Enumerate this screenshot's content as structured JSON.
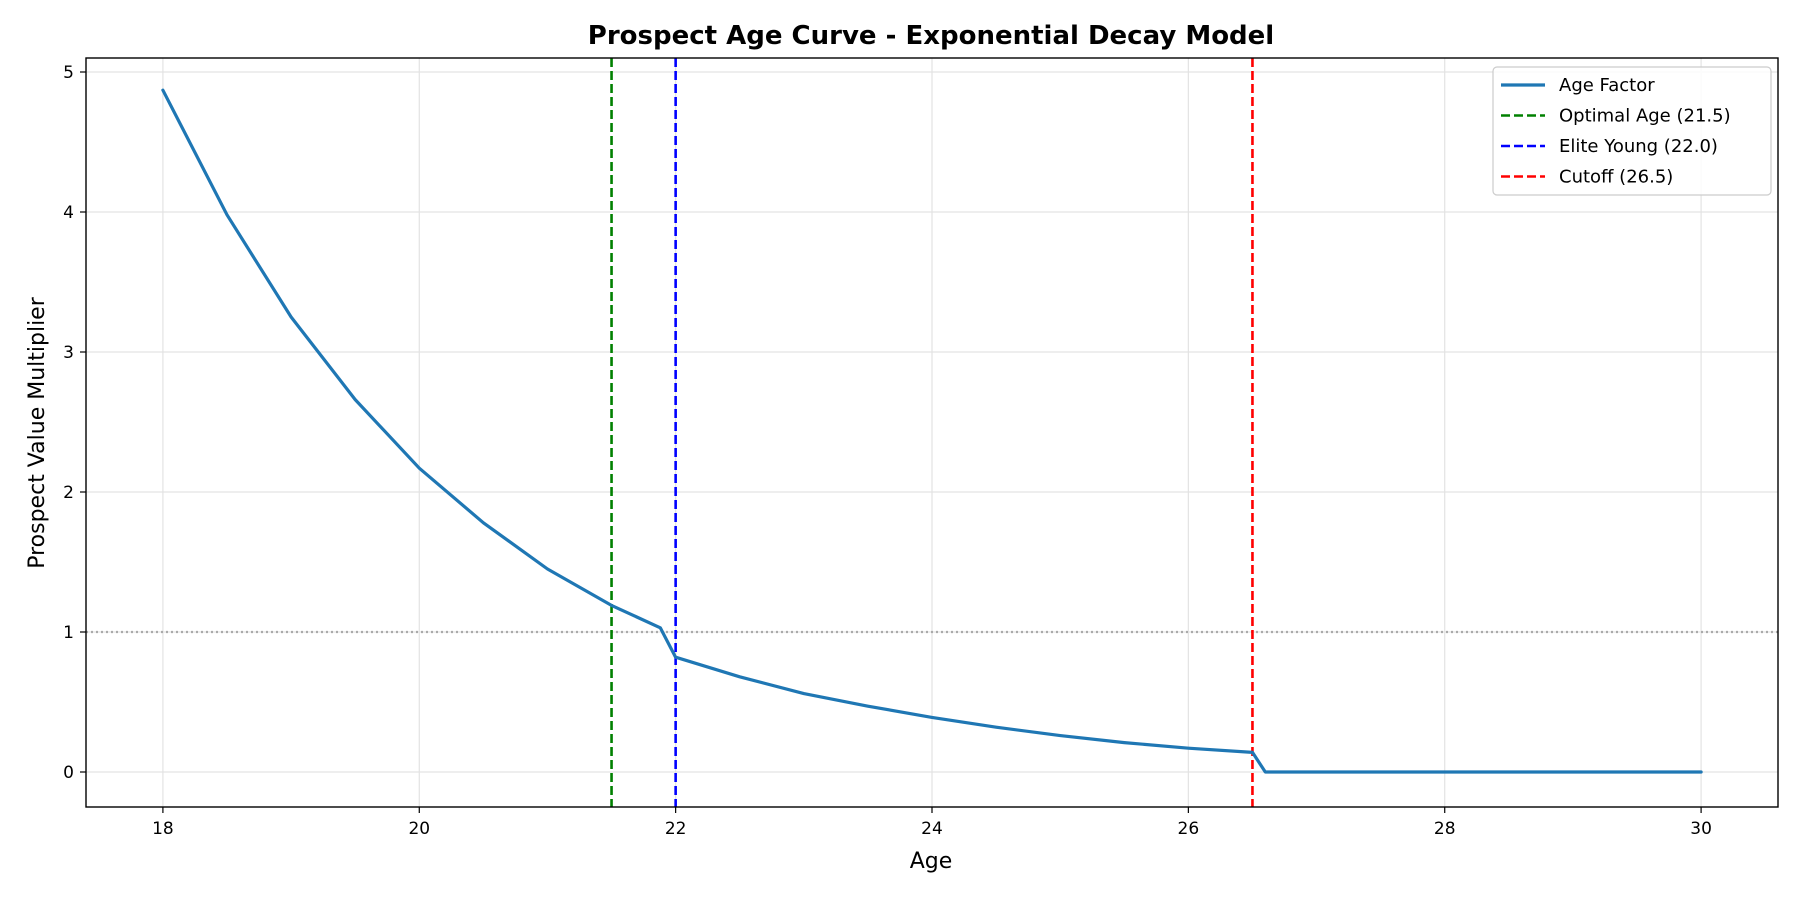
{
  "chart_data": {
    "type": "line",
    "title": "Prospect Age Curve - Exponential Decay Model",
    "xlabel": "Age",
    "ylabel": "Prospect Value Multiplier",
    "xlim": [
      17.4,
      30.6
    ],
    "ylim": [
      -0.25,
      5.1
    ],
    "xticks": [
      18,
      20,
      22,
      24,
      26,
      28,
      30
    ],
    "yticks": [
      0,
      1,
      2,
      3,
      4,
      5
    ],
    "grid": true,
    "legend_position": "top-right",
    "series": [
      {
        "name": "Age Factor",
        "color": "#1f77b4",
        "style": "solid",
        "x": [
          18.0,
          18.5,
          19.0,
          19.5,
          20.0,
          20.5,
          21.0,
          21.5,
          21.88,
          22.0,
          22.5,
          23.0,
          23.5,
          24.0,
          24.5,
          25.0,
          25.5,
          26.0,
          26.5,
          26.6,
          27.0,
          28.0,
          29.0,
          30.0
        ],
        "y": [
          4.87,
          3.98,
          3.25,
          2.66,
          2.17,
          1.78,
          1.45,
          1.19,
          1.03,
          0.82,
          0.68,
          0.56,
          0.47,
          0.39,
          0.32,
          0.26,
          0.21,
          0.17,
          0.14,
          0.0,
          0.0,
          0.0,
          0.0,
          0.0
        ]
      }
    ],
    "vlines": [
      {
        "name": "Optimal Age (21.5)",
        "x": 21.5,
        "color": "#008000",
        "style": "dashed"
      },
      {
        "name": "Elite Young (22.0)",
        "x": 22.0,
        "color": "#0000ff",
        "style": "dashed"
      },
      {
        "name": "Cutoff (26.5)",
        "x": 26.5,
        "color": "#ff0000",
        "style": "dashed"
      }
    ],
    "hlines": [
      {
        "y": 1.0,
        "color": "#aaaaaa",
        "style": "dotted"
      }
    ]
  }
}
